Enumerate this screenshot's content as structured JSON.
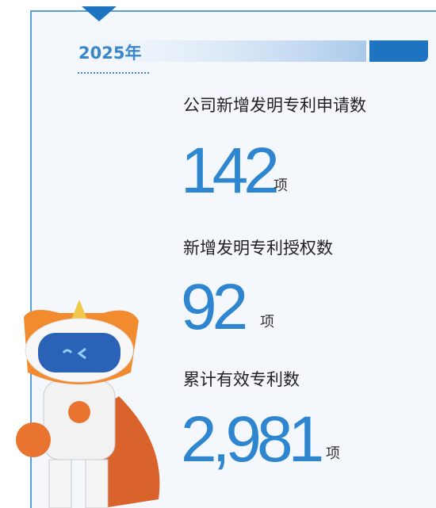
{
  "header": {
    "year": "2025年"
  },
  "stats": [
    {
      "label": "公司新增发明专利申请数",
      "value": "142",
      "unit": "项"
    },
    {
      "label": "新增发明专利授权数",
      "value": "92",
      "unit": "项"
    },
    {
      "label": "累计有效专利数",
      "value": "2,981",
      "unit": "项"
    }
  ]
}
